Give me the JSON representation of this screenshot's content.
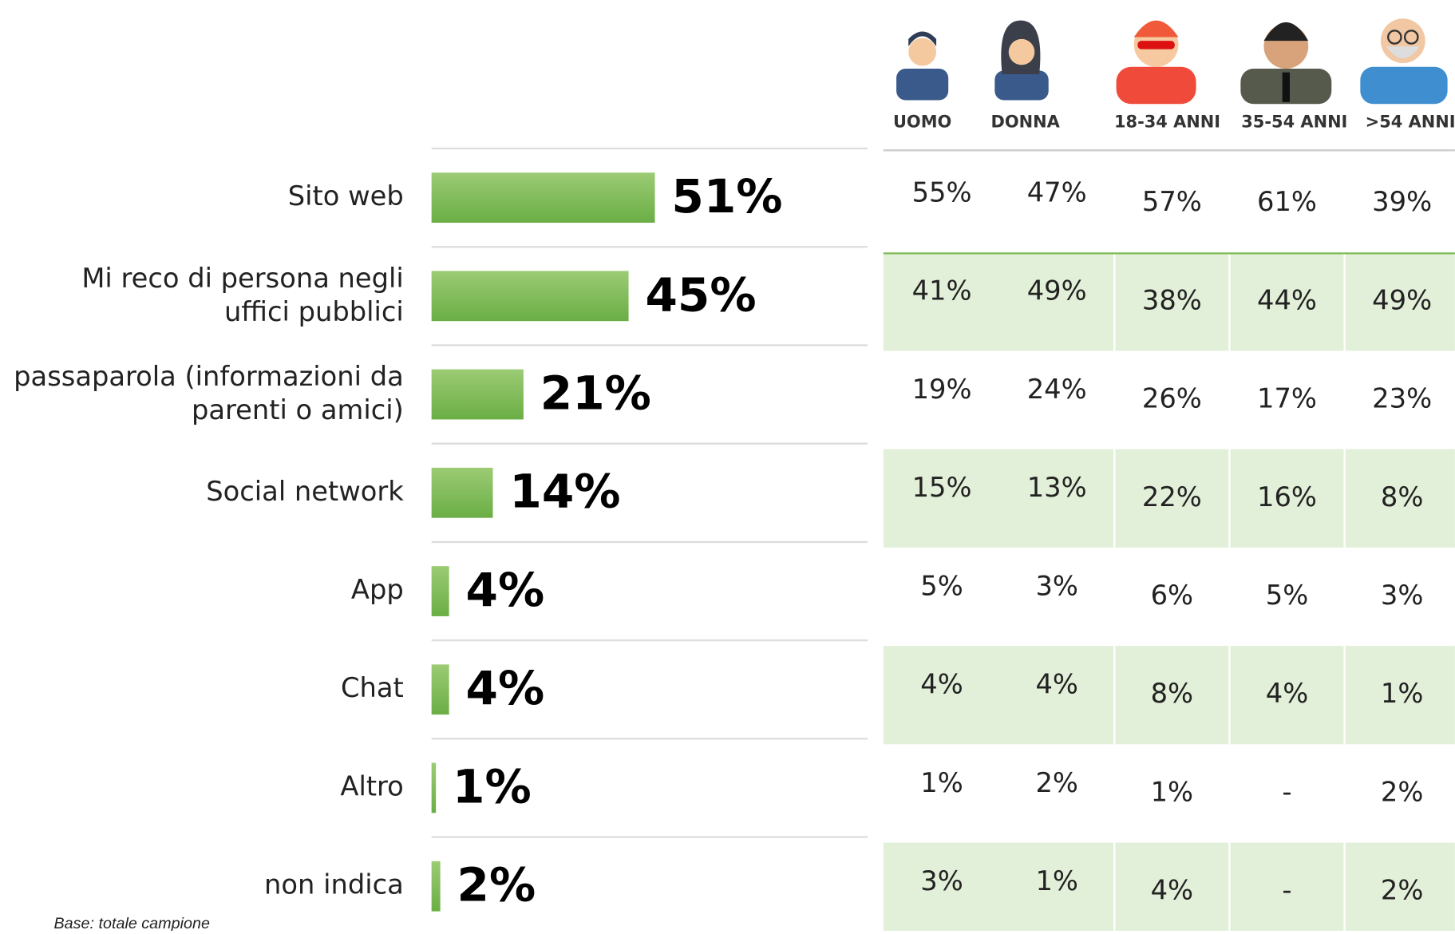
{
  "chart_data": {
    "type": "hbar",
    "categories": [
      "Sito web",
      "Mi reco di persona negli uffici pubblici",
      "passaparola (informazioni da parenti o amici)",
      "Social network",
      "App",
      "Chat",
      "Altro",
      "non indica"
    ],
    "values": [
      51,
      45,
      21,
      14,
      4,
      4,
      1,
      2
    ],
    "value_labels": [
      "51%",
      "45%",
      "21%",
      "14%",
      "4%",
      "4%",
      "1%",
      "2%"
    ],
    "color": "#7dbb55"
  },
  "table": {
    "columns": [
      "UOMO",
      "DONNA",
      "18-34 ANNI",
      "35-54 ANNI",
      ">54 ANNI"
    ],
    "rows": [
      [
        "55%",
        "47%",
        "57%",
        "61%",
        "39%"
      ],
      [
        "41%",
        "49%",
        "38%",
        "44%",
        "49%"
      ],
      [
        "19%",
        "24%",
        "26%",
        "17%",
        "23%"
      ],
      [
        "15%",
        "13%",
        "22%",
        "16%",
        "8%"
      ],
      [
        "5%",
        "3%",
        "6%",
        "5%",
        "3%"
      ],
      [
        "4%",
        "4%",
        "8%",
        "4%",
        "1%"
      ],
      [
        "1%",
        "2%",
        "1%",
        "-",
        "2%"
      ],
      [
        "3%",
        "1%",
        "4%",
        "-",
        "2%"
      ]
    ]
  },
  "footnote": "Base: totale campione"
}
